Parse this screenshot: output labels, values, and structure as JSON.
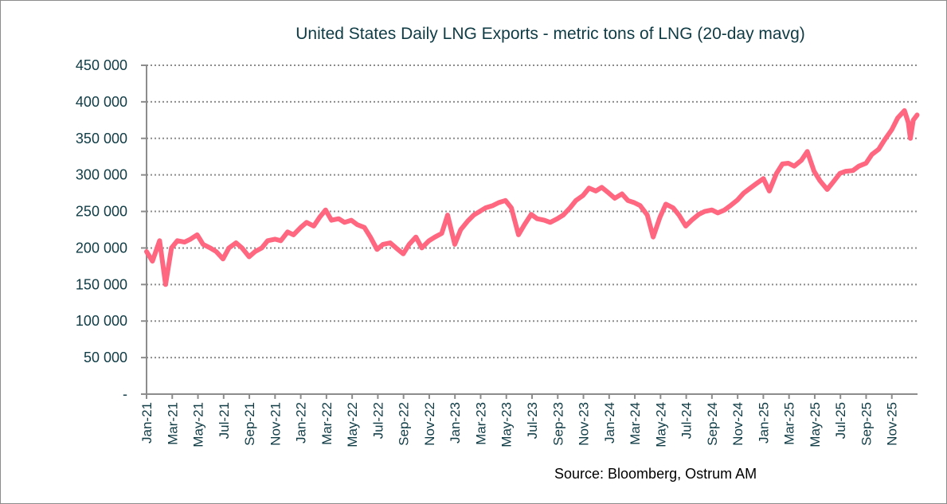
{
  "chart_data": {
    "type": "line",
    "title": "United States Daily LNG Exports - metric tons of LNG (20-day mavg)",
    "source": "Source: Bloomberg, Ostrum AM",
    "xlabel": "",
    "ylabel": "",
    "ylim": [
      0,
      450000
    ],
    "xlim": [
      "2021-01-01",
      "2026-01-01"
    ],
    "grid": "horizontal dotted",
    "legend": "none",
    "line_color": "#ff6680",
    "y_ticks": [
      {
        "value": 0,
        "label": "-"
      },
      {
        "value": 50000,
        "label": "50 000"
      },
      {
        "value": 100000,
        "label": "100 000"
      },
      {
        "value": 150000,
        "label": "150 000"
      },
      {
        "value": 200000,
        "label": "200 000"
      },
      {
        "value": 250000,
        "label": "250 000"
      },
      {
        "value": 300000,
        "label": "300 000"
      },
      {
        "value": 350000,
        "label": "350 000"
      },
      {
        "value": 400000,
        "label": "400 000"
      },
      {
        "value": 450000,
        "label": "450 000"
      }
    ],
    "x_ticks": [
      "Jan-21",
      "Mar-21",
      "May-21",
      "Jul-21",
      "Sep-21",
      "Nov-21",
      "Jan-22",
      "Mar-22",
      "May-22",
      "Jul-22",
      "Sep-22",
      "Nov-22",
      "Jan-23",
      "Mar-23",
      "May-23",
      "Jul-23",
      "Sep-23",
      "Nov-23",
      "Jan-24",
      "Mar-24",
      "May-24",
      "Jul-24",
      "Sep-24",
      "Nov-24",
      "Jan-25",
      "Mar-25",
      "May-25",
      "Jul-25",
      "Sep-25",
      "Nov-25"
    ],
    "series": [
      {
        "values": [
          [
            "2021-01-01",
            195000
          ],
          [
            "2021-01-15",
            182000
          ],
          [
            "2021-02-01",
            210000
          ],
          [
            "2021-02-15",
            150000
          ],
          [
            "2021-03-01",
            200000
          ],
          [
            "2021-03-15",
            210000
          ],
          [
            "2021-04-01",
            208000
          ],
          [
            "2021-04-15",
            212000
          ],
          [
            "2021-05-01",
            218000
          ],
          [
            "2021-05-15",
            205000
          ],
          [
            "2021-06-01",
            200000
          ],
          [
            "2021-06-15",
            195000
          ],
          [
            "2021-07-01",
            185000
          ],
          [
            "2021-07-15",
            200000
          ],
          [
            "2021-08-01",
            207000
          ],
          [
            "2021-08-15",
            200000
          ],
          [
            "2021-09-01",
            188000
          ],
          [
            "2021-09-15",
            195000
          ],
          [
            "2021-10-01",
            200000
          ],
          [
            "2021-10-15",
            210000
          ],
          [
            "2021-11-01",
            212000
          ],
          [
            "2021-11-15",
            210000
          ],
          [
            "2021-12-01",
            222000
          ],
          [
            "2021-12-15",
            218000
          ],
          [
            "2022-01-01",
            228000
          ],
          [
            "2022-01-15",
            235000
          ],
          [
            "2022-02-01",
            230000
          ],
          [
            "2022-02-15",
            242000
          ],
          [
            "2022-03-01",
            252000
          ],
          [
            "2022-03-15",
            238000
          ],
          [
            "2022-04-01",
            240000
          ],
          [
            "2022-04-15",
            235000
          ],
          [
            "2022-05-01",
            238000
          ],
          [
            "2022-05-15",
            232000
          ],
          [
            "2022-06-01",
            228000
          ],
          [
            "2022-06-15",
            215000
          ],
          [
            "2022-07-01",
            198000
          ],
          [
            "2022-07-15",
            205000
          ],
          [
            "2022-08-01",
            207000
          ],
          [
            "2022-08-15",
            200000
          ],
          [
            "2022-09-01",
            192000
          ],
          [
            "2022-09-15",
            205000
          ],
          [
            "2022-10-01",
            215000
          ],
          [
            "2022-10-15",
            200000
          ],
          [
            "2022-11-01",
            210000
          ],
          [
            "2022-11-15",
            215000
          ],
          [
            "2022-12-01",
            220000
          ],
          [
            "2022-12-15",
            245000
          ],
          [
            "2023-01-01",
            205000
          ],
          [
            "2023-01-15",
            225000
          ],
          [
            "2023-02-01",
            237000
          ],
          [
            "2023-02-15",
            245000
          ],
          [
            "2023-03-01",
            250000
          ],
          [
            "2023-03-15",
            255000
          ],
          [
            "2023-04-01",
            258000
          ],
          [
            "2023-04-15",
            262000
          ],
          [
            "2023-05-01",
            265000
          ],
          [
            "2023-05-15",
            255000
          ],
          [
            "2023-06-01",
            218000
          ],
          [
            "2023-06-15",
            232000
          ],
          [
            "2023-07-01",
            246000
          ],
          [
            "2023-07-15",
            240000
          ],
          [
            "2023-08-01",
            238000
          ],
          [
            "2023-08-15",
            235000
          ],
          [
            "2023-09-01",
            240000
          ],
          [
            "2023-09-15",
            245000
          ],
          [
            "2023-10-01",
            255000
          ],
          [
            "2023-10-15",
            265000
          ],
          [
            "2023-11-01",
            272000
          ],
          [
            "2023-11-15",
            282000
          ],
          [
            "2023-12-01",
            278000
          ],
          [
            "2023-12-15",
            283000
          ],
          [
            "2024-01-01",
            275000
          ],
          [
            "2024-01-15",
            268000
          ],
          [
            "2024-02-01",
            274000
          ],
          [
            "2024-02-15",
            265000
          ],
          [
            "2024-03-01",
            262000
          ],
          [
            "2024-03-15",
            258000
          ],
          [
            "2024-04-01",
            245000
          ],
          [
            "2024-04-15",
            215000
          ],
          [
            "2024-05-01",
            242000
          ],
          [
            "2024-05-15",
            260000
          ],
          [
            "2024-06-01",
            255000
          ],
          [
            "2024-06-15",
            245000
          ],
          [
            "2024-07-01",
            230000
          ],
          [
            "2024-07-15",
            238000
          ],
          [
            "2024-08-01",
            246000
          ],
          [
            "2024-08-15",
            250000
          ],
          [
            "2024-09-01",
            252000
          ],
          [
            "2024-09-15",
            248000
          ],
          [
            "2024-10-01",
            252000
          ],
          [
            "2024-10-15",
            258000
          ],
          [
            "2024-11-01",
            266000
          ],
          [
            "2024-11-15",
            275000
          ],
          [
            "2024-12-01",
            282000
          ],
          [
            "2024-12-15",
            288000
          ],
          [
            "2025-01-01",
            295000
          ],
          [
            "2025-01-15",
            278000
          ],
          [
            "2025-02-01",
            302000
          ],
          [
            "2025-02-15",
            315000
          ],
          [
            "2025-03-01",
            316000
          ],
          [
            "2025-03-15",
            312000
          ],
          [
            "2025-04-01",
            320000
          ],
          [
            "2025-04-15",
            332000
          ],
          [
            "2025-05-01",
            305000
          ],
          [
            "2025-05-15",
            292000
          ],
          [
            "2025-06-01",
            280000
          ],
          [
            "2025-06-15",
            290000
          ],
          [
            "2025-07-01",
            302000
          ],
          [
            "2025-07-15",
            305000
          ],
          [
            "2025-08-01",
            306000
          ],
          [
            "2025-08-15",
            312000
          ],
          [
            "2025-09-01",
            316000
          ],
          [
            "2025-09-15",
            328000
          ],
          [
            "2025-10-01",
            335000
          ],
          [
            "2025-10-15",
            348000
          ],
          [
            "2025-11-01",
            362000
          ],
          [
            "2025-11-15",
            378000
          ],
          [
            "2025-12-01",
            388000
          ],
          [
            "2025-12-10",
            372000
          ],
          [
            "2025-12-15",
            350000
          ],
          [
            "2025-12-22",
            375000
          ],
          [
            "2025-12-31",
            382000
          ]
        ]
      }
    ]
  }
}
